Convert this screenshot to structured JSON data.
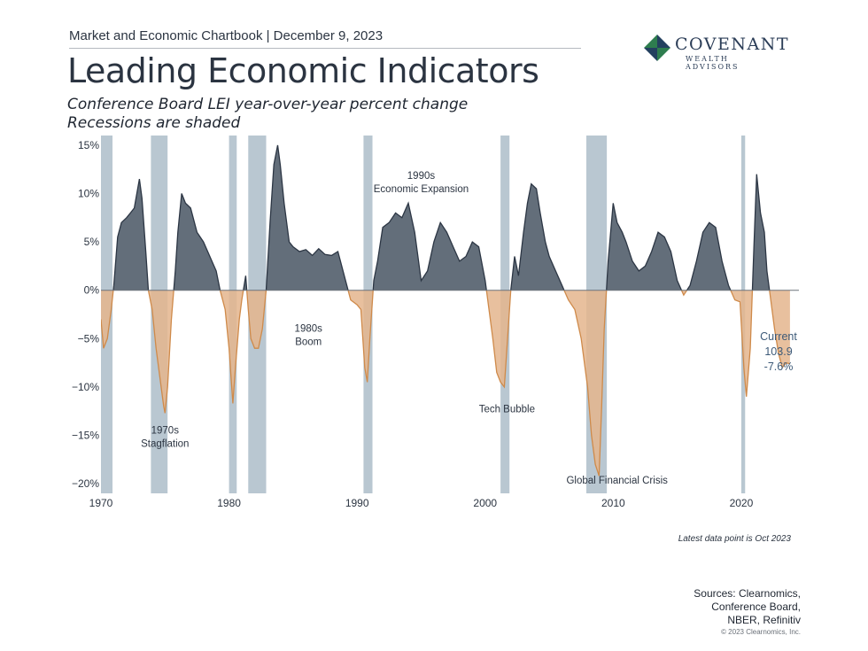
{
  "header": {
    "text": "Market and Economic Chartbook | December 9, 2023"
  },
  "title": "Leading Economic Indicators",
  "subtitle_lines": [
    "Conference Board LEI year-over-year percent change",
    "Recessions are shaded"
  ],
  "logo": {
    "name": "COVENANT",
    "tagline": "WEALTH ADVISORS",
    "icon": "diamond-logo-icon",
    "colors": [
      "#2e7d4f",
      "#23405f"
    ]
  },
  "chart_data": {
    "type": "area",
    "ylabel": "",
    "xlabel": "",
    "xlim": [
      1970,
      2024.5
    ],
    "ylim": [
      -21,
      16
    ],
    "yticks": [
      15,
      10,
      5,
      0,
      -5,
      -10,
      -15,
      -20
    ],
    "ytick_labels": [
      "15%",
      "10%",
      "5%",
      "0%",
      "−5%",
      "−10%",
      "−15%",
      "−20%"
    ],
    "xticks": [
      1970,
      1980,
      1990,
      2000,
      2010,
      2020
    ],
    "xtick_labels": [
      "1970",
      "1980",
      "1990",
      "2000",
      "2010",
      "2020"
    ],
    "colors": {
      "positive": "#5b6673",
      "positive_line": "#2c3644",
      "negative": "#e4b58d",
      "negative_line": "#cf8a4a",
      "recession": "#b9c7d1",
      "axis": "#6d737a"
    },
    "recessions": [
      [
        1970.0,
        1970.9
      ],
      [
        1973.9,
        1975.2
      ],
      [
        1980.0,
        1980.6
      ],
      [
        1981.5,
        1982.9
      ],
      [
        1990.5,
        1991.2
      ],
      [
        2001.2,
        2001.9
      ],
      [
        2007.9,
        2009.5
      ],
      [
        2020.0,
        2020.3
      ]
    ],
    "series": [
      {
        "x": [
          1970.0,
          1970.2,
          1970.5,
          1970.8,
          1971.0,
          1971.3,
          1971.6,
          1972.0,
          1972.3,
          1972.6,
          1973.0,
          1973.2,
          1973.5,
          1973.7,
          1974.0,
          1974.3,
          1974.6,
          1974.9,
          1975.0,
          1975.2,
          1975.5,
          1975.8,
          1976.0,
          1976.3,
          1976.6,
          1977.0,
          1977.5,
          1978.0,
          1978.5,
          1979.0,
          1979.3,
          1979.7,
          1980.0,
          1980.3,
          1980.5,
          1980.8,
          1981.0,
          1981.3,
          1981.5,
          1981.7,
          1982.0,
          1982.3,
          1982.6,
          1982.9,
          1983.2,
          1983.5,
          1983.8,
          1984.0,
          1984.3,
          1984.7,
          1985.0,
          1985.5,
          1986.0,
          1986.5,
          1987.0,
          1987.5,
          1988.0,
          1988.5,
          1989.0,
          1989.5,
          1990.0,
          1990.3,
          1990.6,
          1990.8,
          1991.0,
          1991.3,
          1991.6,
          1992.0,
          1992.5,
          1993.0,
          1993.5,
          1994.0,
          1994.5,
          1995.0,
          1995.5,
          1996.0,
          1996.5,
          1997.0,
          1997.5,
          1998.0,
          1998.5,
          1999.0,
          1999.5,
          2000.0,
          2000.3,
          2000.6,
          2000.9,
          2001.2,
          2001.5,
          2001.8,
          2002.0,
          2002.3,
          2002.6,
          2003.0,
          2003.3,
          2003.6,
          2004.0,
          2004.3,
          2004.7,
          2005.0,
          2005.5,
          2006.0,
          2006.5,
          2007.0,
          2007.5,
          2008.0,
          2008.3,
          2008.6,
          2008.9,
          2009.1,
          2009.3,
          2009.6,
          2010.0,
          2010.3,
          2010.7,
          2011.0,
          2011.5,
          2012.0,
          2012.5,
          2013.0,
          2013.5,
          2014.0,
          2014.5,
          2015.0,
          2015.5,
          2016.0,
          2016.5,
          2017.0,
          2017.5,
          2018.0,
          2018.5,
          2019.0,
          2019.5,
          2019.9,
          2020.2,
          2020.4,
          2020.7,
          2021.0,
          2021.2,
          2021.5,
          2021.8,
          2022.0,
          2022.3,
          2022.6,
          2022.9,
          2023.2,
          2023.5,
          2023.8
        ],
        "y": [
          -3.0,
          -6.0,
          -5.0,
          -2.0,
          0.5,
          5.5,
          7.0,
          7.5,
          8.0,
          8.5,
          11.5,
          9.5,
          4.0,
          0.0,
          -2.0,
          -6.0,
          -9.0,
          -12.0,
          -12.7,
          -10.0,
          -3.0,
          2.0,
          6.0,
          10.0,
          9.0,
          8.5,
          6.0,
          5.0,
          3.5,
          2.0,
          0.0,
          -2.0,
          -6.0,
          -11.7,
          -8.0,
          -3.0,
          -1.0,
          1.5,
          -2.0,
          -5.0,
          -6.0,
          -6.0,
          -4.0,
          0.0,
          7.0,
          13.0,
          15.0,
          13.0,
          9.0,
          5.0,
          4.5,
          4.0,
          4.2,
          3.6,
          4.3,
          3.7,
          3.6,
          4.0,
          1.5,
          -1.0,
          -1.5,
          -2.0,
          -8.0,
          -9.5,
          -5.0,
          1.0,
          3.0,
          6.5,
          7.0,
          8.0,
          7.5,
          9.0,
          6.0,
          1.0,
          2.0,
          5.0,
          7.0,
          6.0,
          4.5,
          3.0,
          3.5,
          5.0,
          4.5,
          1.0,
          -2.0,
          -5.0,
          -8.5,
          -9.5,
          -10.0,
          -4.0,
          0.0,
          3.5,
          1.5,
          6.0,
          9.0,
          11.0,
          10.5,
          8.0,
          5.0,
          3.5,
          2.0,
          0.5,
          -1.0,
          -2.0,
          -5.0,
          -10.0,
          -15.0,
          -18.0,
          -19.2,
          -12.0,
          -4.0,
          3.0,
          9.0,
          7.0,
          6.0,
          5.0,
          3.0,
          2.0,
          2.5,
          4.0,
          6.0,
          5.5,
          4.0,
          1.0,
          -0.5,
          0.5,
          3.0,
          6.0,
          7.0,
          6.5,
          3.0,
          0.5,
          -1.0,
          -1.2,
          -8.0,
          -11.0,
          -6.0,
          5.0,
          12.0,
          8.0,
          6.0,
          2.0,
          -1.0,
          -4.0,
          -6.5,
          -8.0,
          -7.5,
          -7.6
        ]
      }
    ],
    "annotations": [
      {
        "text": [
          "1970s",
          "Stagflation"
        ],
        "x": 1975.0,
        "y": -14.8
      },
      {
        "text": [
          "1980s",
          "Boom"
        ],
        "x": 1986.2,
        "y": -4.3
      },
      {
        "text": [
          "1990s",
          "Economic Expansion"
        ],
        "x": 1995.0,
        "y": 11.5
      },
      {
        "text": [
          "Tech Bubble"
        ],
        "x": 2001.7,
        "y": -12.6
      },
      {
        "text": [
          "Global Financial Crisis"
        ],
        "x": 2010.3,
        "y": -20.0
      }
    ],
    "current": {
      "label": "Current",
      "value": "103.9",
      "change": "-7.6%"
    }
  },
  "footnote": "Latest data point is Oct 2023",
  "sources_lines": [
    "Sources: Clearnomics,",
    "Conference Board,",
    "NBER, Refinitiv"
  ],
  "copyright": "© 2023 Clearnomics, Inc."
}
